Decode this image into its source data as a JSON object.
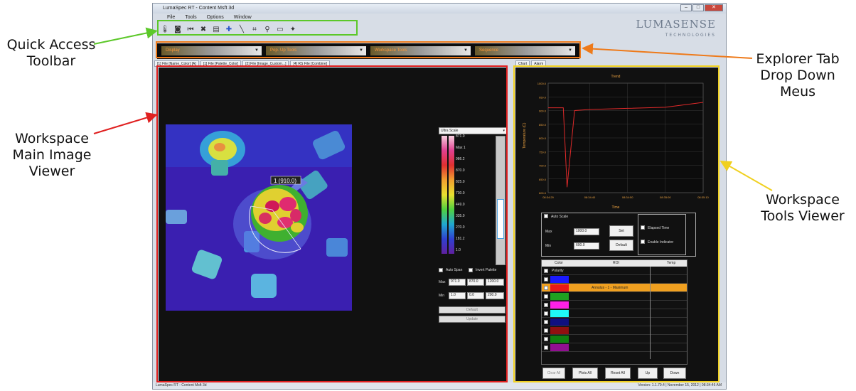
{
  "callouts": {
    "quick_access": [
      "Quick Access",
      "Toolbar"
    ],
    "explorer": [
      "Explorer Tab",
      "Drop Down",
      "Meus"
    ],
    "workspace_main": [
      "Workspace",
      "Main Image",
      "Viewer"
    ],
    "workspace_tools": [
      "Workspace",
      "Tools Viewer"
    ]
  },
  "colors": {
    "green": "#5cc829",
    "orange": "#ee7a1a",
    "red": "#e02020",
    "yellow": "#f0d020"
  },
  "app": {
    "title": "LumaSpec RT - Content Msft 3d",
    "menu": [
      "File",
      "Tools",
      "Options",
      "Window"
    ],
    "logo_main": "LUMASENSE",
    "logo_sub": "TECHNOLOGIES",
    "toolbar_icons": [
      "thermometer-icon",
      "camera-icon",
      "rewind-icon",
      "stop-icon",
      "save-icon",
      "crosshair-icon",
      "line-icon",
      "zoom-icon",
      "record-icon",
      "monitor-icon",
      "pin-icon"
    ],
    "explorer_dropdowns": [
      "Display",
      "Pop. Up Tools",
      "Workspace Tools",
      "Sequence"
    ],
    "doc_tabs": [
      "[1] File [Name_Color] [A]",
      "[1] File [Palette_Color]",
      "[2] File [Image_Custom...]",
      "[4] RS File [Combine]"
    ]
  },
  "main_viewer": {
    "spot_label": "1 (910.0)",
    "palette": "Ultra Scale",
    "scale_values": [
      "871.0",
      "Max 1",
      "986.2",
      "870.0",
      "825.0",
      "730.0",
      "449.0",
      "335.0",
      "270.0",
      "181.2",
      "1.0"
    ],
    "auto_span": "Auto Span",
    "invert_palette": "Invert Palette",
    "max_label": "Max",
    "min_label": "Min",
    "max_values": [
      "971.0",
      "870.0",
      "1200.0"
    ],
    "min_values": [
      "1.0",
      "0.0",
      "200.0"
    ],
    "default_btn": "Default",
    "update_btn": "Update"
  },
  "tools_viewer": {
    "tabs": [
      "Chart",
      "Alarm"
    ],
    "chart_title": "Trend",
    "y_label": "Temperature (C)",
    "x_label": "Time",
    "y_ticks": [
      "1000.0",
      "950.0",
      "900.0",
      "850.0",
      "800.0",
      "750.0",
      "700.0",
      "650.0",
      "600.0"
    ],
    "x_ticks": [
      "08:34:29",
      "08:34:40",
      "08:34:50",
      "08:35:00",
      "08:35:10"
    ],
    "auto_scale": "Auto Scale",
    "max_label": "Max",
    "min_label": "Min",
    "max_val": "1000.0",
    "min_val": "600.0",
    "set_btn": "Set",
    "default_btn": "Default",
    "elapsed_time": "Elapsed Time",
    "enable_indicator": "Enable Indicator",
    "table_headers": [
      "Color",
      "ROI",
      "Temp"
    ],
    "polarity": "Polarity",
    "active_roi": "Annulus - 1 - Maximum",
    "btns": [
      "Clear All",
      "Plots All",
      "Reset All",
      "Up",
      "Down"
    ]
  },
  "chart_data": {
    "type": "line",
    "title": "Trend",
    "xlabel": "Time",
    "ylabel": "Temperature (C)",
    "ylim": [
      600,
      1000
    ],
    "x": [
      "08:34:29",
      "08:34:31",
      "08:34:33",
      "08:34:34",
      "08:34:36",
      "08:34:40",
      "08:34:50",
      "08:35:00",
      "08:35:10"
    ],
    "series": [
      {
        "values": [
          910,
          910,
          910,
          620,
          900,
          904,
          908,
          912,
          930
        ]
      }
    ]
  },
  "status": {
    "left": "LumaSpec RT - Content Msft 3d",
    "right": "Version: 1.1.79.4 | November 15, 2012 | 08:34:46 AM"
  }
}
